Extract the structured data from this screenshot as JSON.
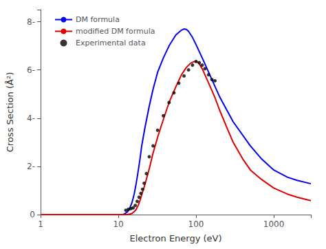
{
  "chart_data": {
    "type": "line",
    "xlabel": "Electron Energy (eV)",
    "ylabel": "Cross Section (Å²)",
    "log": "x",
    "xlim": [
      1,
      3000
    ],
    "xticks": [
      1,
      10,
      100,
      1000
    ],
    "ylim": [
      0,
      8.5
    ],
    "yticks": [
      0,
      {
        "value": 2,
        "label": "2-"
      },
      {
        "value": 4,
        "label": "4-"
      },
      {
        "value": 6,
        "label": "6-"
      },
      {
        "value": 8,
        "label": "8-"
      }
    ],
    "grid": false,
    "legend": "upper left",
    "series": [
      {
        "name": "DM formula",
        "type": "line",
        "color": "#0000ee",
        "x": [
          1,
          10,
          11.5,
          12,
          13,
          14,
          15,
          16,
          17,
          18,
          19,
          20,
          22,
          25,
          28,
          32,
          38,
          45,
          55,
          65,
          70,
          75,
          80,
          90,
          100,
          120,
          150,
          200,
          300,
          500,
          700,
          1000,
          1500,
          2000,
          3000
        ],
        "values": [
          0,
          0,
          0.0,
          0.03,
          0.1,
          0.25,
          0.5,
          0.85,
          1.3,
          1.8,
          2.3,
          2.85,
          3.6,
          4.5,
          5.2,
          5.9,
          6.5,
          7.0,
          7.45,
          7.65,
          7.7,
          7.68,
          7.6,
          7.35,
          7.05,
          6.5,
          5.8,
          4.9,
          3.85,
          2.85,
          2.3,
          1.85,
          1.55,
          1.42,
          1.28
        ]
      },
      {
        "name": "modified DM formula",
        "type": "line",
        "color": "#dd0000",
        "x": [
          1,
          12,
          13,
          14,
          15,
          16,
          17,
          18,
          19,
          20,
          22,
          25,
          28,
          32,
          38,
          45,
          55,
          65,
          75,
          85,
          95,
          100,
          105,
          110,
          120,
          130,
          150,
          175,
          200,
          250,
          300,
          400,
          500,
          700,
          1000,
          1500,
          2000,
          3000
        ],
        "values": [
          0,
          0,
          0.0,
          0.02,
          0.05,
          0.12,
          0.22,
          0.38,
          0.58,
          0.82,
          1.25,
          1.9,
          2.55,
          3.2,
          3.95,
          4.65,
          5.3,
          5.8,
          6.1,
          6.28,
          6.35,
          6.35,
          6.32,
          6.25,
          6.05,
          5.8,
          5.35,
          4.85,
          4.35,
          3.6,
          3.0,
          2.3,
          1.85,
          1.45,
          1.1,
          0.85,
          0.72,
          0.58
        ]
      },
      {
        "name": "Experimental data",
        "type": "scatter",
        "color": "black",
        "marker": "o",
        "x": [
          12.5,
          13.5,
          14.5,
          15.5,
          16.5,
          17.5,
          18.5,
          19.5,
          20.5,
          21.5,
          23.0,
          25.0,
          28.0,
          32.0,
          38.0,
          45.0,
          52.0,
          60.0,
          70.0,
          80.0,
          90.0,
          100.0,
          110.0,
          120.0,
          130.0,
          145.0,
          160.0,
          175.0
        ],
        "values": [
          0.18,
          0.22,
          0.25,
          0.28,
          0.38,
          0.55,
          0.72,
          0.88,
          1.05,
          1.3,
          1.7,
          2.4,
          2.85,
          3.5,
          4.1,
          4.65,
          5.05,
          5.45,
          5.75,
          6.0,
          6.2,
          6.35,
          6.3,
          6.2,
          6.05,
          5.8,
          5.6,
          5.55
        ]
      }
    ]
  }
}
